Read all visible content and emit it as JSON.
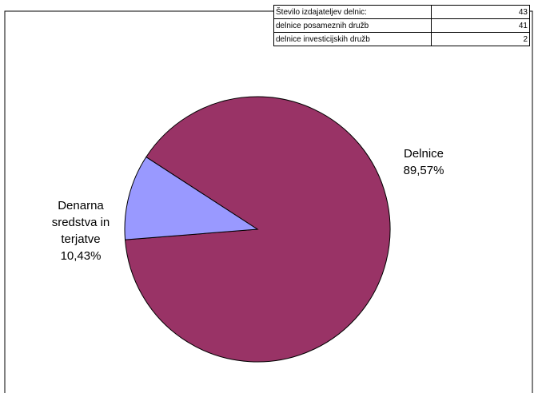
{
  "chart_data": {
    "type": "pie",
    "categories": [
      "Delnice",
      "Denarna sredstva in terjatve"
    ],
    "values": [
      89.57,
      10.43
    ],
    "value_labels": [
      "89,57%",
      "10,43%"
    ],
    "colors": [
      "#993366",
      "#9999ff"
    ]
  },
  "table": {
    "rows": [
      [
        "Število izdajateljev delnic:",
        43
      ],
      [
        "delnice posameznih družb",
        41
      ],
      [
        "delnice investicijskih družb",
        2
      ]
    ]
  }
}
